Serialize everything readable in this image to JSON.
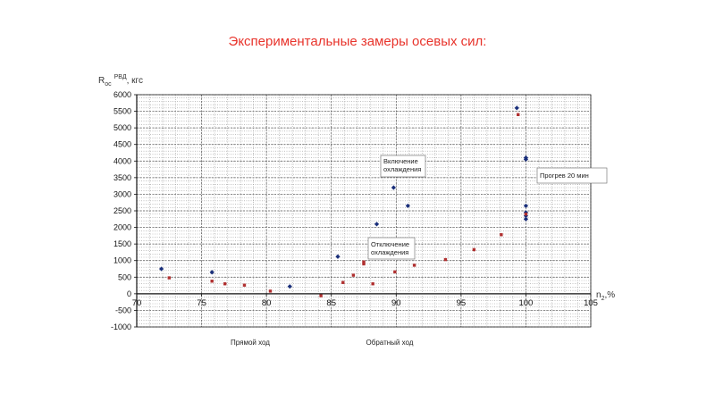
{
  "page": {
    "title": "Экспериментальные замеры осевых сил:"
  },
  "chart_data": {
    "type": "scatter",
    "title": "Экспериментальные замеры осевых сил:",
    "ylabel": {
      "main": "R",
      "sub": "ос",
      "sup": "РВД",
      "unit": ", кгс"
    },
    "xlabel": {
      "main": "n",
      "sub": "2",
      "unit": ",%"
    },
    "xlim": [
      70,
      105
    ],
    "ylim": [
      -1000,
      6000
    ],
    "xticks": [
      70,
      75,
      80,
      85,
      90,
      95,
      100,
      105
    ],
    "yticks": [
      -1000,
      -500,
      0,
      500,
      1000,
      1500,
      2000,
      2500,
      3000,
      3500,
      4000,
      4500,
      5000,
      5500,
      6000
    ],
    "grid": true,
    "captions": {
      "forward": "Прямой ход",
      "reverse": "Обратный ход"
    },
    "annotations": {
      "cooling_on": [
        "Включение",
        "охлаждения"
      ],
      "warmup": "Прогрев 20 мин",
      "cooling_off": [
        "Отключение",
        "охлаждения"
      ]
    },
    "colors": {
      "series1": "#1a2f7a",
      "series2": "#b03030",
      "title": "#e8332b"
    },
    "series": [
      {
        "points": [
          [
            71.9,
            750
          ],
          [
            75.8,
            650
          ],
          [
            81.8,
            220
          ],
          [
            85.5,
            1120
          ],
          [
            88.5,
            2100
          ],
          [
            89.8,
            3200
          ],
          [
            90.9,
            2650
          ],
          [
            99.3,
            5600
          ],
          [
            100.0,
            4100
          ],
          [
            100.0,
            4050
          ],
          [
            100.0,
            2650
          ],
          [
            100.0,
            2450
          ],
          [
            100.0,
            2350
          ],
          [
            100.0,
            2250
          ]
        ]
      },
      {
        "points": [
          [
            72.5,
            480
          ],
          [
            75.8,
            380
          ],
          [
            76.8,
            300
          ],
          [
            78.3,
            260
          ],
          [
            80.3,
            80
          ],
          [
            84.2,
            -60
          ],
          [
            85.9,
            340
          ],
          [
            86.7,
            560
          ],
          [
            87.5,
            900
          ],
          [
            87.5,
            960
          ],
          [
            88.2,
            300
          ],
          [
            89.9,
            660
          ],
          [
            91.4,
            860
          ],
          [
            93.8,
            1030
          ],
          [
            96.0,
            1330
          ],
          [
            98.1,
            1780
          ],
          [
            99.4,
            5400
          ],
          [
            100.0,
            2400
          ]
        ]
      }
    ]
  }
}
